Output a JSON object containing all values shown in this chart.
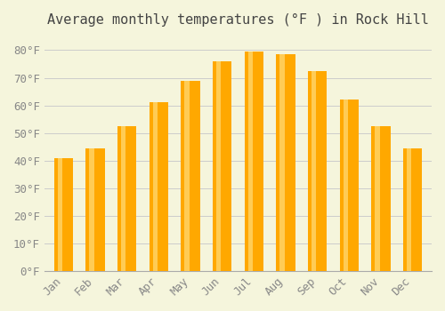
{
  "title": "Average monthly temperatures (°F ) in Rock Hill",
  "months": [
    "Jan",
    "Feb",
    "Mar",
    "Apr",
    "May",
    "Jun",
    "Jul",
    "Aug",
    "Sep",
    "Oct",
    "Nov",
    "Dec"
  ],
  "values": [
    41,
    44.5,
    52.5,
    61,
    69,
    76,
    79.5,
    78.5,
    72.5,
    62,
    52.5,
    44.5
  ],
  "bar_color_main": "#FFA800",
  "bar_color_light": "#FFCC55",
  "background_color": "#F5F5DC",
  "grid_color": "#CCCCCC",
  "ylim": [
    0,
    85
  ],
  "yticks": [
    0,
    10,
    20,
    30,
    40,
    50,
    60,
    70,
    80
  ],
  "title_fontsize": 11,
  "tick_fontsize": 9
}
